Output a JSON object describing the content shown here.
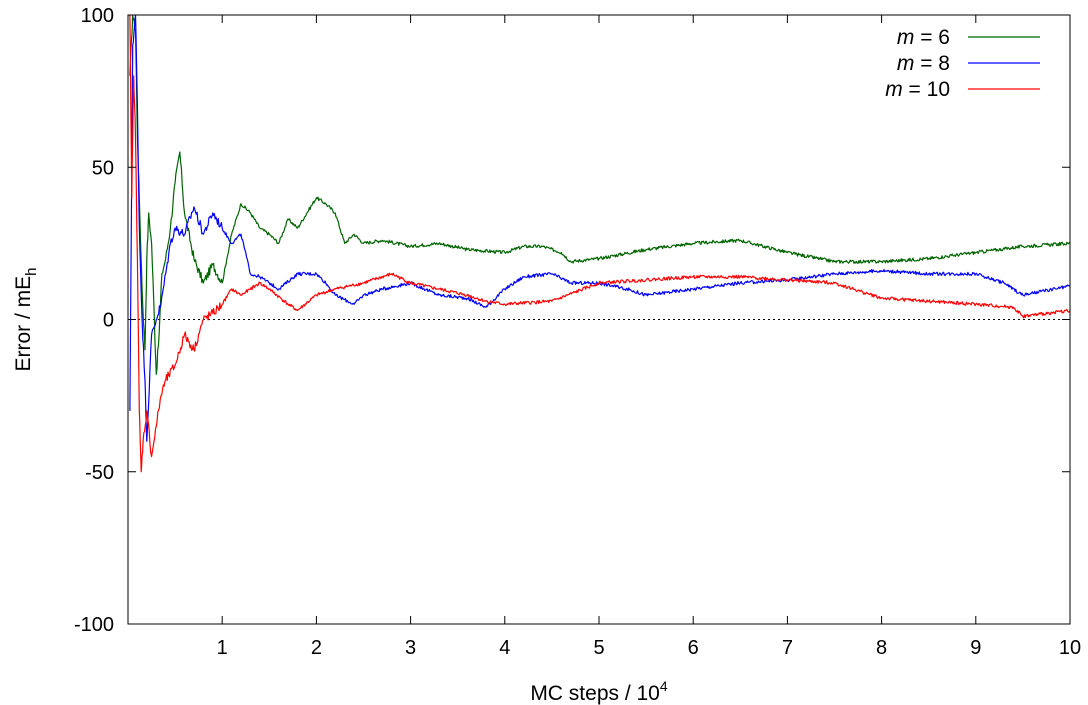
{
  "chart_data": {
    "type": "line",
    "xlabel": {
      "text": "MC steps / 10",
      "sup": "4"
    },
    "ylabel": {
      "text": "Error / mE",
      "sub": "h"
    },
    "xlim": [
      0,
      10
    ],
    "ylim": [
      -100,
      100
    ],
    "x_ticks": [
      "1",
      "2",
      "3",
      "4",
      "5",
      "6",
      "7",
      "8",
      "9",
      "10"
    ],
    "y_ticks": [
      "-100",
      "-50",
      "0",
      "50",
      "100"
    ],
    "reference_line": {
      "y": 0,
      "style": "dotted"
    },
    "legend": {
      "placement": "top-right"
    },
    "colors": {
      "m6": "#006400",
      "m8": "#0000ff",
      "m10": "#ff0000"
    },
    "series": [
      {
        "name_prefix": "m",
        "name_suffix": " = 6",
        "color": "#006400",
        "x": [
          0.02,
          0.05,
          0.08,
          0.1,
          0.12,
          0.15,
          0.18,
          0.2,
          0.22,
          0.25,
          0.28,
          0.3,
          0.33,
          0.36,
          0.4,
          0.45,
          0.5,
          0.55,
          0.6,
          0.7,
          0.8,
          0.9,
          1.0,
          1.05,
          1.1,
          1.2,
          1.3,
          1.4,
          1.5,
          1.6,
          1.7,
          1.8,
          1.9,
          2.0,
          2.1,
          2.2,
          2.3,
          2.4,
          2.5,
          2.7,
          3.0,
          3.3,
          3.6,
          4.0,
          4.2,
          4.4,
          4.6,
          4.7,
          5.0,
          5.5,
          6.0,
          6.5,
          7.0,
          7.5,
          8.0,
          8.5,
          9.0,
          9.5,
          10.0
        ],
        "y": [
          80,
          100,
          95,
          60,
          40,
          10,
          -10,
          20,
          35,
          25,
          0,
          -18,
          -5,
          15,
          20,
          30,
          45,
          55,
          35,
          20,
          12,
          18,
          12,
          20,
          28,
          38,
          35,
          30,
          28,
          25,
          33,
          30,
          35,
          40,
          38,
          35,
          25,
          28,
          25,
          26,
          24,
          25,
          23,
          22,
          24,
          24,
          22,
          19,
          20,
          23,
          25,
          26,
          22,
          19,
          19,
          20,
          22,
          24,
          25
        ]
      },
      {
        "name_prefix": "m",
        "name_suffix": " = 8",
        "color": "#0000ff",
        "x": [
          0.02,
          0.05,
          0.08,
          0.1,
          0.12,
          0.15,
          0.18,
          0.2,
          0.25,
          0.3,
          0.35,
          0.4,
          0.45,
          0.5,
          0.6,
          0.7,
          0.8,
          0.9,
          1.0,
          1.1,
          1.2,
          1.3,
          1.4,
          1.5,
          1.6,
          1.8,
          2.0,
          2.1,
          2.2,
          2.4,
          2.5,
          2.7,
          3.0,
          3.3,
          3.6,
          3.8,
          4.0,
          4.2,
          4.5,
          4.7,
          5.0,
          5.3,
          5.5,
          6.0,
          6.5,
          7.0,
          7.5,
          8.0,
          8.5,
          9.0,
          9.3,
          9.5,
          10.0
        ],
        "y": [
          -30,
          90,
          100,
          70,
          30,
          0,
          -20,
          -40,
          -5,
          0,
          5,
          15,
          25,
          30,
          28,
          37,
          28,
          35,
          30,
          25,
          28,
          15,
          14,
          12,
          10,
          15,
          15,
          12,
          8,
          5,
          8,
          10,
          12,
          8,
          7,
          4,
          10,
          14,
          15,
          12,
          12,
          10,
          8,
          10,
          12,
          13,
          15,
          16,
          15,
          15,
          12,
          8,
          11
        ]
      },
      {
        "name_prefix": "m",
        "name_suffix": " = 10",
        "color": "#ff0000",
        "x": [
          0.02,
          0.04,
          0.06,
          0.08,
          0.1,
          0.12,
          0.14,
          0.16,
          0.2,
          0.25,
          0.3,
          0.35,
          0.4,
          0.5,
          0.6,
          0.7,
          0.8,
          0.9,
          1.0,
          1.1,
          1.2,
          1.3,
          1.4,
          1.5,
          1.7,
          1.8,
          2.0,
          2.2,
          2.5,
          2.8,
          3.0,
          3.3,
          3.6,
          3.8,
          4.0,
          4.5,
          5.0,
          5.5,
          6.0,
          6.5,
          7.0,
          7.5,
          8.0,
          8.5,
          9.0,
          9.4,
          9.5,
          10.0
        ],
        "y": [
          100,
          40,
          80,
          60,
          20,
          -30,
          -50,
          -40,
          -30,
          -45,
          -35,
          -25,
          -20,
          -15,
          -5,
          -10,
          0,
          2,
          5,
          10,
          8,
          10,
          12,
          10,
          5,
          3,
          8,
          10,
          12,
          15,
          12,
          10,
          8,
          6,
          5,
          6,
          12,
          13,
          14,
          14,
          13,
          12,
          7,
          6,
          5,
          4,
          1,
          3
        ]
      }
    ]
  }
}
